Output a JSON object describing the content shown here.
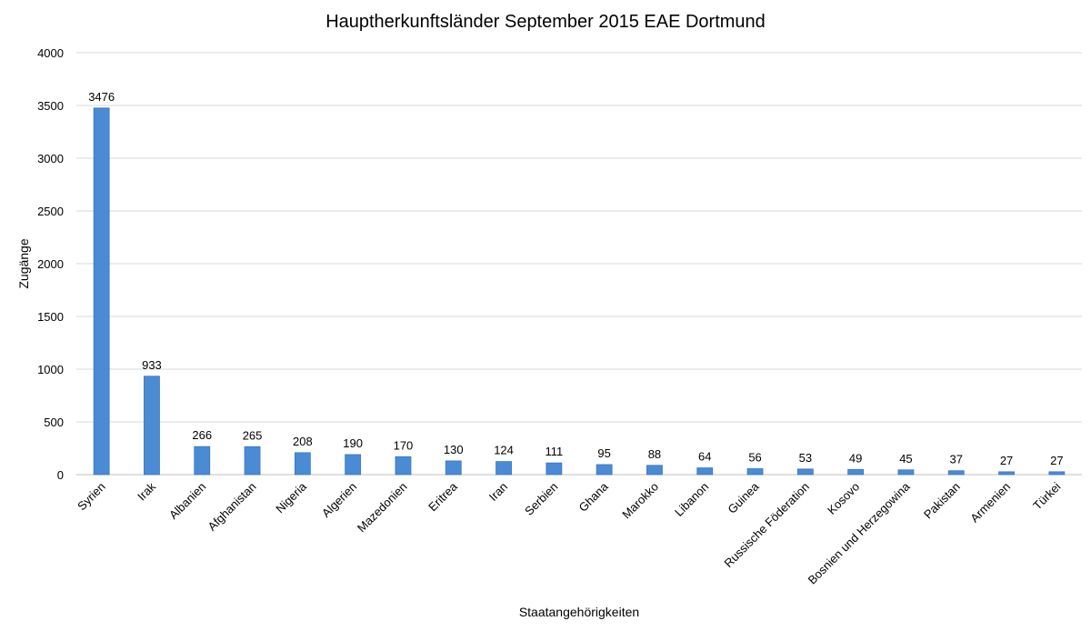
{
  "chart_data": {
    "type": "bar",
    "title": "Hauptherkunftsländer September 2015 EAE Dortmund",
    "xlabel": "Staatangehörigkeiten",
    "ylabel": "Zugänge",
    "ylim": [
      0,
      4000
    ],
    "yticks": [
      0,
      500,
      1000,
      1500,
      2000,
      2500,
      3000,
      3500,
      4000
    ],
    "grid": true,
    "legend": "none",
    "bar_color": "#4a8bd4",
    "bar_border": "#3a76bd",
    "grid_color": "#d9d9d9",
    "categories": [
      "Syrien",
      "Irak",
      "Albanien",
      "Afghanistan",
      "Nigeria",
      "Algerien",
      "Mazedonien",
      "Eritrea",
      "Iran",
      "Serbien",
      "Ghana",
      "Marokko",
      "Libanon",
      "Guinea",
      "Russische Föderation",
      "Kosovo",
      "Bosnien und Herzegowina",
      "Pakistan",
      "Armenien",
      "Türkei"
    ],
    "values": [
      3476,
      933,
      266,
      265,
      208,
      190,
      170,
      130,
      124,
      111,
      95,
      88,
      64,
      56,
      53,
      49,
      45,
      37,
      27,
      27
    ]
  }
}
